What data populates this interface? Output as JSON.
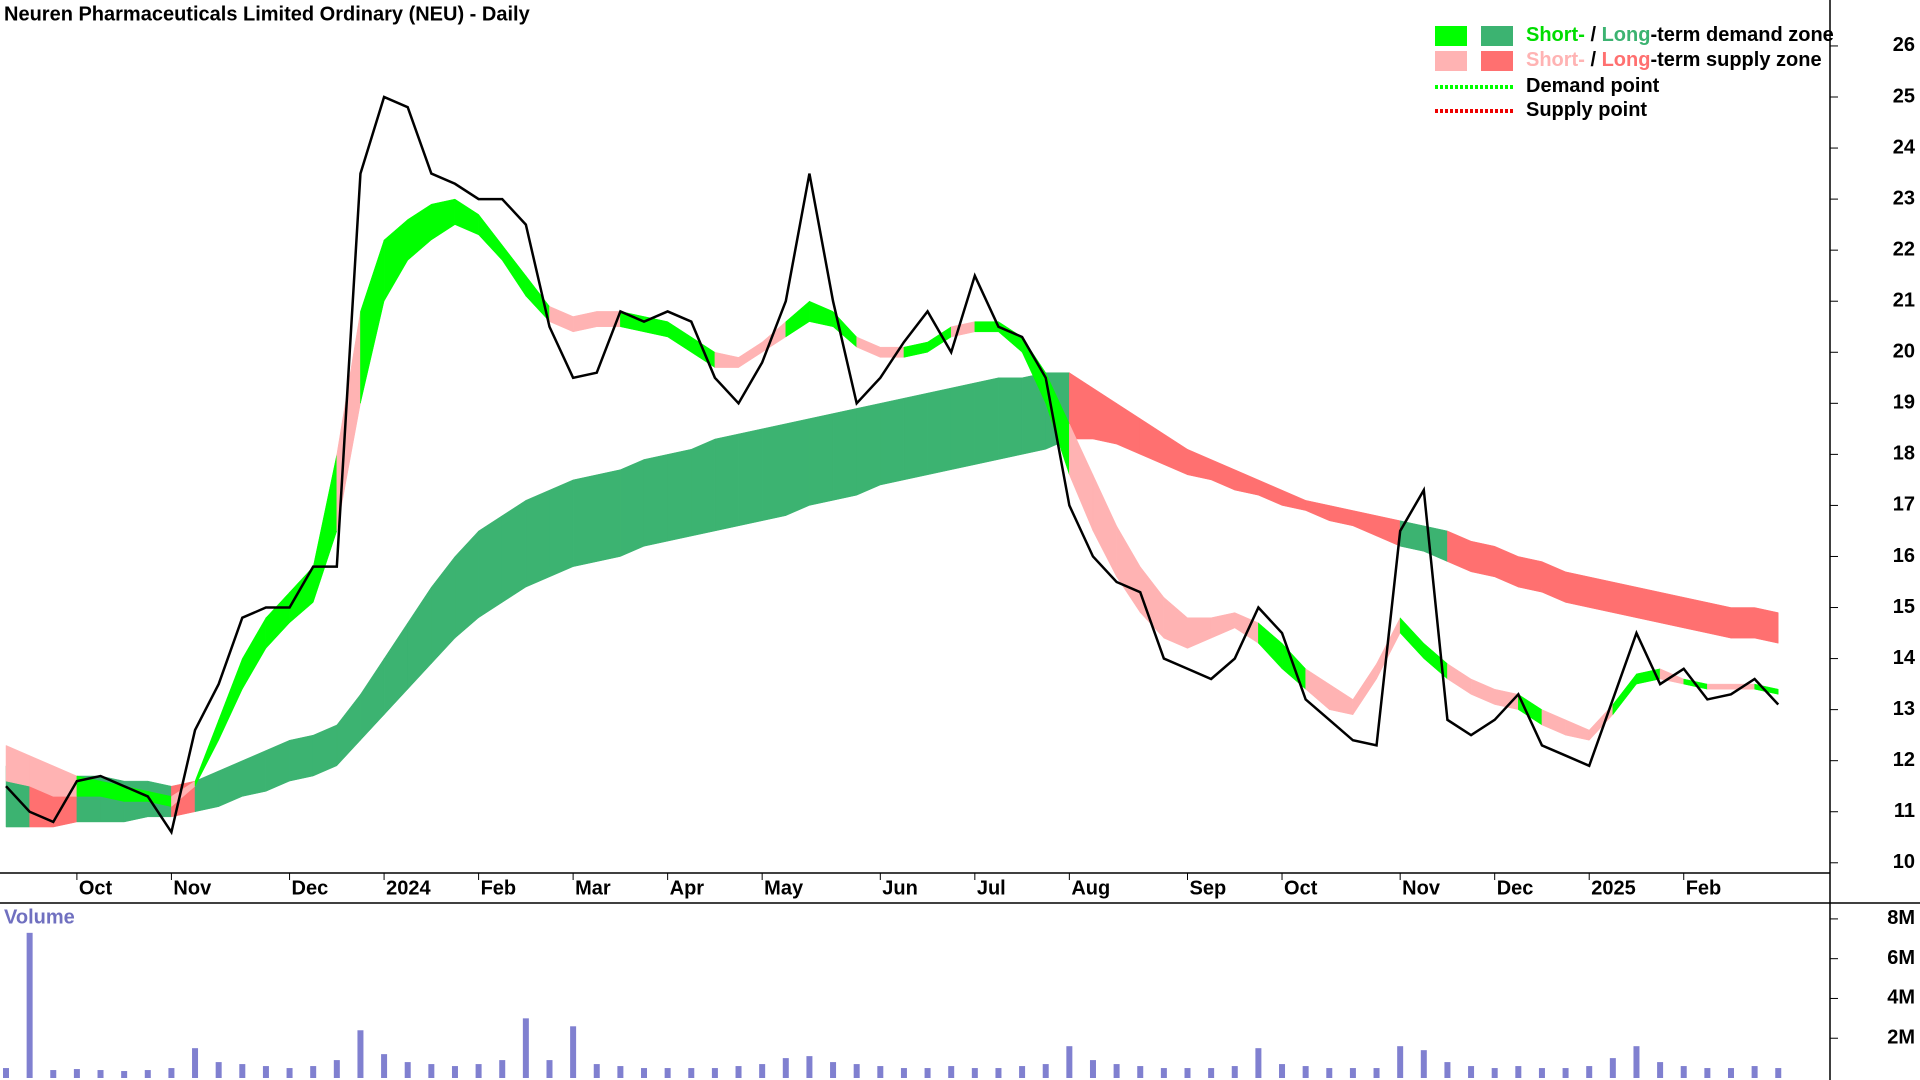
{
  "chart_data": [
    {
      "type": "line",
      "title": "Neuren Pharmaceuticals Limited Ordinary (NEU) - Daily",
      "categories": [
        null,
        null,
        null,
        "Oct",
        null,
        null,
        null,
        "Nov",
        null,
        null,
        null,
        null,
        "Dec",
        null,
        null,
        null,
        "2024",
        null,
        null,
        null,
        "Feb",
        null,
        null,
        null,
        "Mar",
        null,
        null,
        null,
        "Apr",
        null,
        null,
        null,
        "May",
        null,
        null,
        null,
        null,
        "Jun",
        null,
        null,
        null,
        "Jul",
        null,
        null,
        null,
        "Aug",
        null,
        null,
        null,
        null,
        "Sep",
        null,
        null,
        null,
        "Oct",
        null,
        null,
        null,
        null,
        "Nov",
        null,
        null,
        null,
        "Dec",
        null,
        null,
        null,
        "2025",
        null,
        null,
        null,
        "Feb",
        null,
        null,
        null,
        null
      ],
      "values": [
        11.5,
        11.0,
        10.8,
        11.6,
        11.7,
        11.5,
        11.3,
        10.6,
        12.6,
        13.5,
        14.8,
        15.0,
        15.0,
        15.8,
        15.8,
        23.5,
        25.0,
        24.8,
        23.5,
        23.3,
        23.0,
        23.0,
        22.5,
        20.5,
        19.5,
        19.6,
        20.8,
        20.6,
        20.8,
        20.6,
        19.5,
        19.0,
        19.8,
        21.0,
        23.5,
        21.0,
        19.0,
        19.5,
        20.2,
        20.8,
        20.0,
        21.5,
        20.5,
        20.3,
        19.5,
        17.0,
        16.0,
        15.5,
        15.3,
        14.0,
        13.8,
        13.6,
        14.0,
        15.0,
        14.5,
        13.2,
        12.8,
        12.4,
        12.3,
        16.5,
        17.3,
        12.8,
        12.5,
        12.8,
        13.3,
        12.3,
        12.1,
        11.9,
        13.2,
        14.5,
        13.5,
        13.8,
        13.2,
        13.3,
        13.6,
        13.1
      ],
      "color": "#000000",
      "short_term_zone": {
        "lower": [
          11.6,
          11.5,
          11.3,
          11.3,
          11.3,
          11.2,
          11.2,
          11.1,
          11.5,
          12.4,
          13.4,
          14.2,
          14.7,
          15.1,
          16.5,
          19.0,
          21.0,
          21.8,
          22.2,
          22.5,
          22.3,
          21.8,
          21.1,
          20.6,
          20.4,
          20.5,
          20.5,
          20.4,
          20.3,
          20.0,
          19.7,
          19.7,
          20.0,
          20.3,
          20.6,
          20.5,
          20.1,
          19.9,
          19.9,
          20.0,
          20.3,
          20.4,
          20.4,
          20.0,
          19.0,
          17.6,
          16.5,
          15.6,
          14.9,
          14.4,
          14.2,
          14.4,
          14.6,
          14.3,
          13.8,
          13.4,
          13.0,
          12.9,
          13.6,
          14.5,
          14.0,
          13.6,
          13.3,
          13.1,
          13.0,
          12.7,
          12.5,
          12.4,
          12.9,
          13.5,
          13.6,
          13.5,
          13.4,
          13.4,
          13.4,
          13.3
        ],
        "upper": [
          12.3,
          12.1,
          11.9,
          11.7,
          11.6,
          11.5,
          11.4,
          11.3,
          11.6,
          12.8,
          14.0,
          14.8,
          15.3,
          15.8,
          18.0,
          20.8,
          22.2,
          22.6,
          22.9,
          23.0,
          22.7,
          22.1,
          21.5,
          20.9,
          20.7,
          20.8,
          20.8,
          20.7,
          20.6,
          20.3,
          20.0,
          19.9,
          20.2,
          20.6,
          21.0,
          20.8,
          20.3,
          20.1,
          20.1,
          20.2,
          20.5,
          20.6,
          20.6,
          20.3,
          19.6,
          18.6,
          17.6,
          16.6,
          15.8,
          15.2,
          14.8,
          14.8,
          14.9,
          14.7,
          14.3,
          13.8,
          13.5,
          13.2,
          13.9,
          14.8,
          14.3,
          13.9,
          13.6,
          13.4,
          13.3,
          13.0,
          12.8,
          12.6,
          13.1,
          13.7,
          13.8,
          13.6,
          13.5,
          13.5,
          13.5,
          13.4
        ],
        "demand_color": "#00ff00",
        "supply_color": "#ffb3b3"
      },
      "long_term_zone": {
        "lower": [
          10.7,
          10.7,
          10.7,
          10.8,
          10.8,
          10.8,
          10.9,
          10.9,
          11.0,
          11.1,
          11.3,
          11.4,
          11.6,
          11.7,
          11.9,
          12.4,
          12.9,
          13.4,
          13.9,
          14.4,
          14.8,
          15.1,
          15.4,
          15.6,
          15.8,
          15.9,
          16.0,
          16.2,
          16.3,
          16.4,
          16.5,
          16.6,
          16.7,
          16.8,
          17.0,
          17.1,
          17.2,
          17.4,
          17.5,
          17.6,
          17.7,
          17.8,
          17.9,
          18.0,
          18.1,
          18.3,
          18.3,
          18.2,
          18.0,
          17.8,
          17.6,
          17.5,
          17.3,
          17.2,
          17.0,
          16.9,
          16.7,
          16.6,
          16.4,
          16.2,
          16.1,
          15.9,
          15.7,
          15.6,
          15.4,
          15.3,
          15.1,
          15.0,
          14.9,
          14.8,
          14.7,
          14.6,
          14.5,
          14.4,
          14.4,
          14.3
        ],
        "upper": [
          11.9,
          11.8,
          11.7,
          11.7,
          11.7,
          11.6,
          11.6,
          11.5,
          11.6,
          11.8,
          12.0,
          12.2,
          12.4,
          12.5,
          12.7,
          13.3,
          14.0,
          14.7,
          15.4,
          16.0,
          16.5,
          16.8,
          17.1,
          17.3,
          17.5,
          17.6,
          17.7,
          17.9,
          18.0,
          18.1,
          18.3,
          18.4,
          18.5,
          18.6,
          18.7,
          18.8,
          18.9,
          19.0,
          19.1,
          19.2,
          19.3,
          19.4,
          19.5,
          19.5,
          19.6,
          19.6,
          19.3,
          19.0,
          18.7,
          18.4,
          18.1,
          17.9,
          17.7,
          17.5,
          17.3,
          17.1,
          17.0,
          16.9,
          16.8,
          16.7,
          16.6,
          16.5,
          16.3,
          16.2,
          16.0,
          15.9,
          15.7,
          15.6,
          15.5,
          15.4,
          15.3,
          15.2,
          15.1,
          15.0,
          15.0,
          14.9
        ],
        "demand_color": "#3cb371",
        "supply_color": "#ff7070"
      },
      "ylim": [
        9.8,
        26.9
      ],
      "yticks": [
        10,
        11,
        12,
        13,
        14,
        15,
        16,
        17,
        18,
        19,
        20,
        21,
        22,
        23,
        24,
        25,
        26
      ],
      "legend": {
        "position": "top-right",
        "items": [
          {
            "swatches": [
              "#00ff00",
              "#3cb371"
            ],
            "parts": [
              {
                "text": "Short-",
                "color": "#00dd00"
              },
              {
                "text": " / ",
                "color": "#000000"
              },
              {
                "text": "Long",
                "color": "#3cb371"
              },
              {
                "text": "-term demand zone",
                "color": "#000000"
              }
            ]
          },
          {
            "swatches": [
              "#ffb3b3",
              "#ff7070"
            ],
            "parts": [
              {
                "text": "Short-",
                "color": "#ffb3b3"
              },
              {
                "text": " / ",
                "color": "#000000"
              },
              {
                "text": "Long",
                "color": "#ff7070"
              },
              {
                "text": "-term supply zone",
                "color": "#000000"
              }
            ]
          },
          {
            "line": "#00ff00",
            "parts": [
              {
                "text": "Demand point",
                "color": "#000000"
              }
            ]
          },
          {
            "line": "#ee0000",
            "parts": [
              {
                "text": "Supply point",
                "color": "#000000"
              }
            ]
          }
        ]
      }
    },
    {
      "type": "bar",
      "title": "Volume",
      "values": [
        500000,
        7300000,
        400000,
        450000,
        400000,
        350000,
        400000,
        500000,
        1500000,
        800000,
        700000,
        600000,
        500000,
        600000,
        900000,
        2400000,
        1200000,
        800000,
        700000,
        600000,
        700000,
        900000,
        3000000,
        900000,
        2600000,
        700000,
        600000,
        500000,
        500000,
        500000,
        500000,
        600000,
        700000,
        1000000,
        1100000,
        800000,
        700000,
        600000,
        500000,
        500000,
        600000,
        500000,
        500000,
        600000,
        700000,
        1600000,
        900000,
        700000,
        600000,
        500000,
        500000,
        500000,
        600000,
        1500000,
        700000,
        600000,
        500000,
        500000,
        500000,
        1600000,
        1400000,
        800000,
        600000,
        500000,
        600000,
        500000,
        500000,
        600000,
        1000000,
        1600000,
        800000,
        600000,
        500000,
        500000,
        600000,
        500000
      ],
      "color": "#8080d0",
      "ylim": [
        0,
        8800000
      ],
      "yticks": [
        {
          "value": 2000000,
          "label": "2M"
        },
        {
          "value": 4000000,
          "label": "4M"
        },
        {
          "value": 6000000,
          "label": "6M"
        },
        {
          "value": 8000000,
          "label": "8M"
        }
      ]
    }
  ]
}
